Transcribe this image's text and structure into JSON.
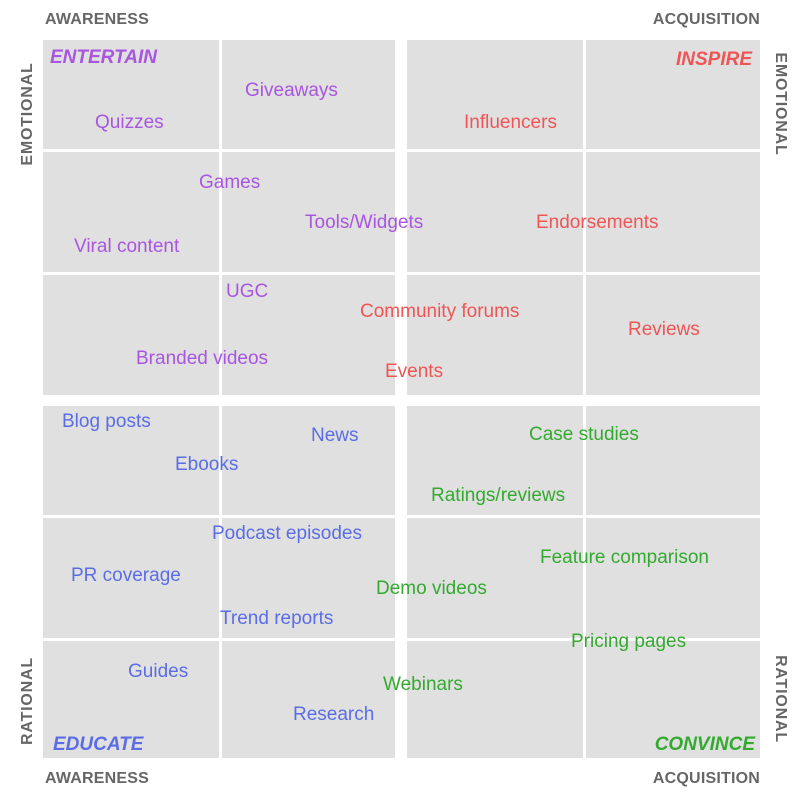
{
  "axes": {
    "top_left": "AWARENESS",
    "top_right": "ACQUISITION",
    "bottom_left": "AWARENESS",
    "bottom_right": "ACQUISITION",
    "left_top": "EMOTIONAL",
    "right_top": "EMOTIONAL",
    "left_bottom": "RATIONAL",
    "right_bottom": "RATIONAL",
    "axis_color": "#666666"
  },
  "colors": {
    "entertain": "#a855e0",
    "inspire": "#ef5555",
    "educate": "#5a6de6",
    "convince": "#33aa2f",
    "grid_fill": "#e0e0e0",
    "grid_line": "#ffffff"
  },
  "quadrants": {
    "entertain": {
      "title": "ENTERTAIN",
      "items": [
        "Giveaways",
        "Quizzes",
        "Games",
        "Tools/Widgets",
        "Viral content",
        "UGC",
        "Branded videos"
      ]
    },
    "inspire": {
      "title": "INSPIRE",
      "items": [
        "Influencers",
        "Endorsements",
        "Community forums",
        "Reviews",
        "Events"
      ]
    },
    "educate": {
      "title": "EDUCATE",
      "items": [
        "Blog posts",
        "News",
        "Ebooks",
        "Podcast episodes",
        "PR coverage",
        "Trend reports",
        "Guides",
        "Research"
      ]
    },
    "convince": {
      "title": "CONVINCE",
      "items": [
        "Case studies",
        "Ratings/reviews",
        "Feature comparison",
        "Demo videos",
        "Pricing pages",
        "Webinars"
      ]
    }
  }
}
